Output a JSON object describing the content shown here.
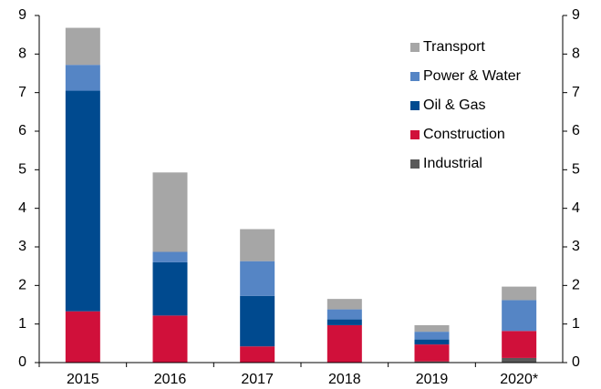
{
  "chart_data": {
    "type": "stacked_bar",
    "categories": [
      "2015",
      "2016",
      "2017",
      "2018",
      "2019",
      "2020*"
    ],
    "series": [
      {
        "name": "Industrial",
        "color": "#595959",
        "values": [
          0,
          0,
          0,
          0,
          0.03,
          0.12
        ]
      },
      {
        "name": "Construction",
        "color": "#d0103a",
        "values": [
          1.33,
          1.22,
          0.42,
          0.97,
          0.44,
          0.7
        ]
      },
      {
        "name": "Oil & Gas",
        "color": "#004a8f",
        "values": [
          5.72,
          1.38,
          1.31,
          0.15,
          0.13,
          0
        ]
      },
      {
        "name": "Power & Water",
        "color": "#5585c5",
        "values": [
          0.67,
          0.27,
          0.9,
          0.26,
          0.2,
          0.8
        ]
      },
      {
        "name": "Transport",
        "color": "#a6a6a6",
        "values": [
          0.96,
          2.06,
          0.83,
          0.27,
          0.17,
          0.35
        ]
      }
    ],
    "ylim": [
      0,
      9
    ],
    "yticks": [
      0,
      1,
      2,
      3,
      4,
      5,
      6,
      7,
      8,
      9
    ],
    "y2lim": [
      0,
      9
    ],
    "y2ticks": [
      0,
      1,
      2,
      3,
      4,
      5,
      6,
      7,
      8,
      9
    ],
    "legend": "upper right"
  }
}
